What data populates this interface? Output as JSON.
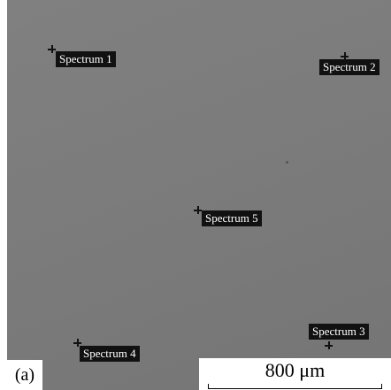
{
  "panel_label": "(a)",
  "scale_bar": "800 μm",
  "spectra": [
    {
      "label": "Spectrum 1"
    },
    {
      "label": "Spectrum 2"
    },
    {
      "label": "Spectrum 3"
    },
    {
      "label": "Spectrum 4"
    },
    {
      "label": "Spectrum 5"
    }
  ]
}
